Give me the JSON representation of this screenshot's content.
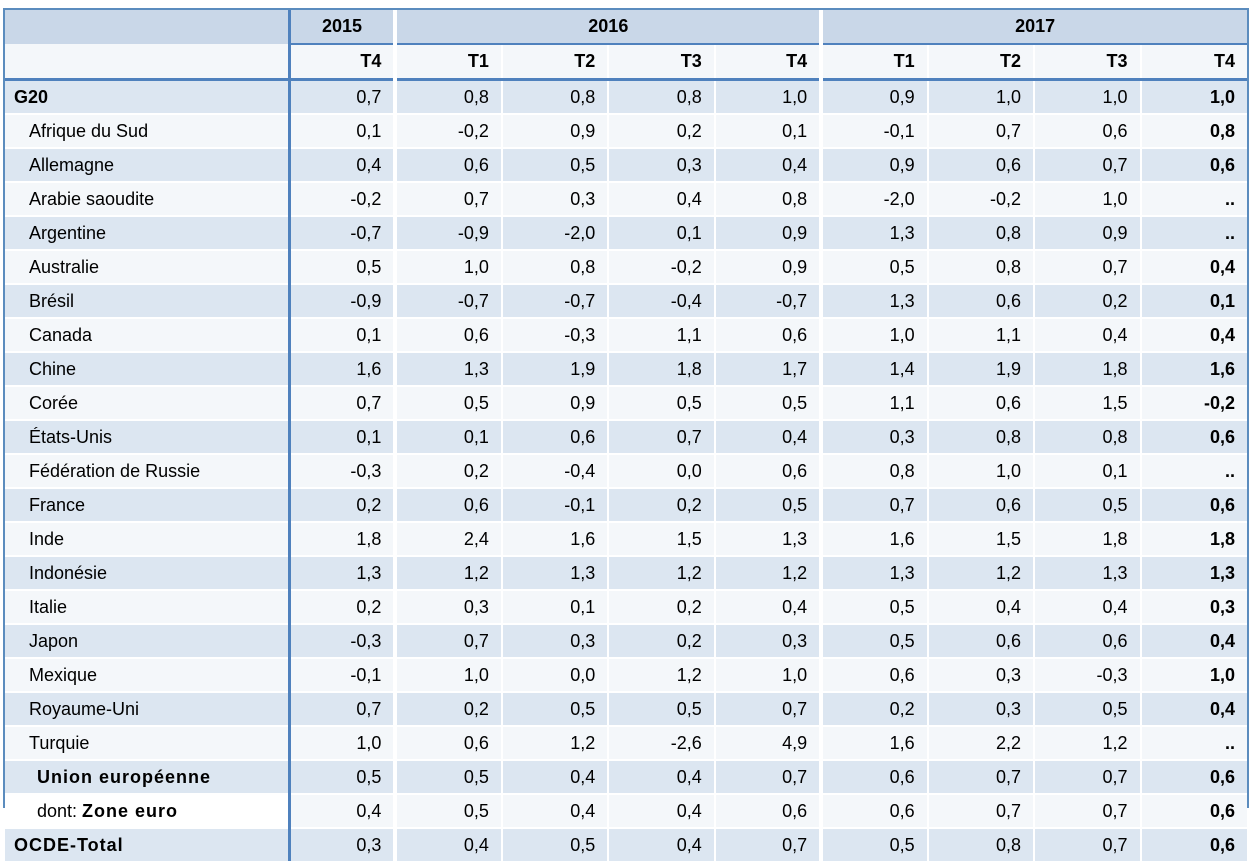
{
  "colors": {
    "outer_border": "#5b8cbe",
    "inner_border": "#4f81bd",
    "year_header_bg": "#c9d7e8",
    "light_row_bg": "#f4f7fa",
    "blue_row_bg": "#dce6f1",
    "text": "#000000"
  },
  "chart_data": {
    "type": "table",
    "description": "Quarterly growth-rate table (French labels), G20 countries, 2015 T4 to 2017 T4",
    "year_groups": [
      {
        "label": "2015",
        "colspan": 1
      },
      {
        "label": "2016",
        "colspan": 4
      },
      {
        "label": "2017",
        "colspan": 4
      }
    ],
    "quarter_columns": [
      "T4",
      "T1",
      "T2",
      "T3",
      "T4",
      "T1",
      "T2",
      "T3",
      "T4"
    ],
    "rows": [
      {
        "label": "G20",
        "bold": true,
        "indent": 0,
        "values": [
          "0,7",
          "0,8",
          "0,8",
          "0,8",
          "1,0",
          "0,9",
          "1,0",
          "1,0",
          "1,0"
        ]
      },
      {
        "label": "Afrique du Sud",
        "indent": 1,
        "values": [
          "0,1",
          "-0,2",
          "0,9",
          "0,2",
          "0,1",
          "-0,1",
          "0,7",
          "0,6",
          "0,8"
        ]
      },
      {
        "label": "Allemagne",
        "indent": 1,
        "values": [
          "0,4",
          "0,6",
          "0,5",
          "0,3",
          "0,4",
          "0,9",
          "0,6",
          "0,7",
          "0,6"
        ]
      },
      {
        "label": "Arabie saoudite",
        "indent": 1,
        "values": [
          "-0,2",
          "0,7",
          "0,3",
          "0,4",
          "0,8",
          "-2,0",
          "-0,2",
          "1,0",
          ".."
        ]
      },
      {
        "label": "Argentine",
        "indent": 1,
        "values": [
          "-0,7",
          "-0,9",
          "-2,0",
          "0,1",
          "0,9",
          "1,3",
          "0,8",
          "0,9",
          ".."
        ]
      },
      {
        "label": "Australie",
        "indent": 1,
        "values": [
          "0,5",
          "1,0",
          "0,8",
          "-0,2",
          "0,9",
          "0,5",
          "0,8",
          "0,7",
          "0,4"
        ]
      },
      {
        "label": "Brésil",
        "indent": 1,
        "values": [
          "-0,9",
          "-0,7",
          "-0,7",
          "-0,4",
          "-0,7",
          "1,3",
          "0,6",
          "0,2",
          "0,1"
        ]
      },
      {
        "label": "Canada",
        "indent": 1,
        "values": [
          "0,1",
          "0,6",
          "-0,3",
          "1,1",
          "0,6",
          "1,0",
          "1,1",
          "0,4",
          "0,4"
        ]
      },
      {
        "label": "Chine",
        "indent": 1,
        "values": [
          "1,6",
          "1,3",
          "1,9",
          "1,8",
          "1,7",
          "1,4",
          "1,9",
          "1,8",
          "1,6"
        ]
      },
      {
        "label": "Corée",
        "indent": 1,
        "values": [
          "0,7",
          "0,5",
          "0,9",
          "0,5",
          "0,5",
          "1,1",
          "0,6",
          "1,5",
          "-0,2"
        ]
      },
      {
        "label": "États-Unis",
        "indent": 1,
        "values": [
          "0,1",
          "0,1",
          "0,6",
          "0,7",
          "0,4",
          "0,3",
          "0,8",
          "0,8",
          "0,6"
        ]
      },
      {
        "label": "Fédération de Russie",
        "indent": 1,
        "values": [
          "-0,3",
          "0,2",
          "-0,4",
          "0,0",
          "0,6",
          "0,8",
          "1,0",
          "0,1",
          ".."
        ]
      },
      {
        "label": "France",
        "indent": 1,
        "values": [
          "0,2",
          "0,6",
          "-0,1",
          "0,2",
          "0,5",
          "0,7",
          "0,6",
          "0,5",
          "0,6"
        ]
      },
      {
        "label": "Inde",
        "indent": 1,
        "values": [
          "1,8",
          "2,4",
          "1,6",
          "1,5",
          "1,3",
          "1,6",
          "1,5",
          "1,8",
          "1,8"
        ]
      },
      {
        "label": "Indonésie",
        "indent": 1,
        "values": [
          "1,3",
          "1,2",
          "1,3",
          "1,2",
          "1,2",
          "1,3",
          "1,2",
          "1,3",
          "1,3"
        ]
      },
      {
        "label": "Italie",
        "indent": 1,
        "values": [
          "0,2",
          "0,3",
          "0,1",
          "0,2",
          "0,4",
          "0,5",
          "0,4",
          "0,4",
          "0,3"
        ]
      },
      {
        "label": "Japon",
        "indent": 1,
        "values": [
          "-0,3",
          "0,7",
          "0,3",
          "0,2",
          "0,3",
          "0,5",
          "0,6",
          "0,6",
          "0,4"
        ]
      },
      {
        "label": "Mexique",
        "indent": 1,
        "values": [
          "-0,1",
          "1,0",
          "0,0",
          "1,2",
          "1,0",
          "0,6",
          "0,3",
          "-0,3",
          "1,0"
        ]
      },
      {
        "label": "Royaume-Uni",
        "indent": 1,
        "values": [
          "0,7",
          "0,2",
          "0,5",
          "0,5",
          "0,7",
          "0,2",
          "0,3",
          "0,5",
          "0,4"
        ]
      },
      {
        "label": "Turquie",
        "indent": 1,
        "values": [
          "1,0",
          "0,6",
          "1,2",
          "-2,6",
          "4,9",
          "1,6",
          "2,2",
          "1,2",
          ".."
        ]
      },
      {
        "label": "Union européenne",
        "bold": true,
        "spaced": true,
        "indent": 2,
        "values": [
          "0,5",
          "0,5",
          "0,4",
          "0,4",
          "0,7",
          "0,6",
          "0,7",
          "0,7",
          "0,6"
        ]
      },
      {
        "prefix": "dont: ",
        "label": "Zone euro",
        "bold": true,
        "spaced": true,
        "indent": 2,
        "white_label": true,
        "values": [
          "0,4",
          "0,5",
          "0,4",
          "0,4",
          "0,6",
          "0,6",
          "0,7",
          "0,7",
          "0,6"
        ]
      },
      {
        "label": "OCDE-Total",
        "bold": true,
        "spaced": true,
        "indent": 0,
        "values": [
          "0,3",
          "0,4",
          "0,5",
          "0,4",
          "0,7",
          "0,5",
          "0,8",
          "0,7",
          "0,6"
        ]
      }
    ]
  }
}
